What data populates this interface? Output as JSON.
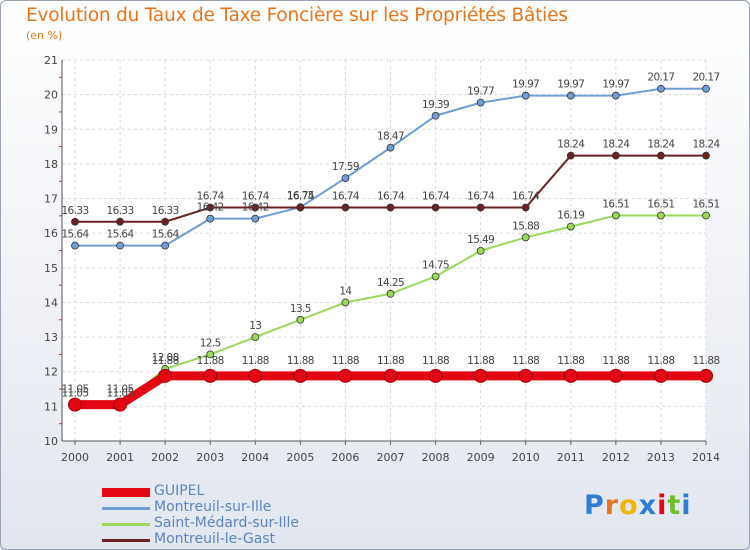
{
  "chart_data": {
    "type": "line",
    "title": "Evolution du Taux de Taxe Foncière sur les Propriétés Bâties",
    "ylabel": "(en %)",
    "xlabel": "",
    "ylim": [
      10,
      21
    ],
    "yticks": [
      "10",
      "11",
      "12",
      "13",
      "14",
      "15",
      "16",
      "17",
      "18",
      "19",
      "20",
      "21"
    ],
    "categories": [
      "2000",
      "2001",
      "2002",
      "2003",
      "2004",
      "2005",
      "2006",
      "2007",
      "2008",
      "2009",
      "2010",
      "2011",
      "2012",
      "2013",
      "2014"
    ],
    "series": [
      {
        "name": "GUIPEL",
        "color": "#e30613",
        "values": [
          11.05,
          11.05,
          11.88,
          11.88,
          11.88,
          11.88,
          11.88,
          11.88,
          11.88,
          11.88,
          11.88,
          11.88,
          11.88,
          11.88,
          11.88
        ],
        "labels": [
          "11.05",
          "11.05",
          "11.88",
          "11.88",
          "11.88",
          "11.88",
          "11.88",
          "11.88",
          "11.88",
          "11.88",
          "11.88",
          "11.88",
          "11.88",
          "11.88",
          "11.88"
        ]
      },
      {
        "name": "Montreuil-sur-Ille",
        "color": "#6f9ed4",
        "values": [
          15.64,
          15.64,
          15.64,
          16.42,
          16.42,
          16.75,
          17.59,
          18.47,
          19.39,
          19.77,
          19.97,
          19.97,
          19.97,
          20.17,
          20.17
        ],
        "labels": [
          "15.64",
          "15.64",
          "15.64",
          "16.42",
          "16.42",
          "16.75",
          "17.59",
          "18.47",
          "19.39",
          "19.77",
          "19.97",
          "19.97",
          "19.97",
          "20.17",
          "20.17"
        ]
      },
      {
        "name": "Saint-Médard-sur-Ille",
        "color": "#9ad95a",
        "values": [
          11.05,
          11.05,
          12.08,
          12.5,
          13,
          13.5,
          14,
          14.25,
          14.75,
          15.49,
          15.88,
          16.19,
          16.51,
          16.51,
          16.51
        ],
        "labels": [
          "11.05",
          "11.05",
          "12.08",
          "12.5",
          "13",
          "13.5",
          "14",
          "14.25",
          "14.75",
          "15.49",
          "15.88",
          "16.19",
          "16.51",
          "16.51",
          "16.51"
        ]
      },
      {
        "name": "Montreuil-le-Gast",
        "color": "#6b2222",
        "values": [
          16.33,
          16.33,
          16.33,
          16.74,
          16.74,
          16.74,
          16.74,
          16.74,
          16.74,
          16.74,
          16.74,
          18.24,
          18.24,
          18.24,
          18.24
        ],
        "labels": [
          "16.33",
          "16.33",
          "16.33",
          "16.74",
          "16.74",
          "16.74",
          "16.74",
          "16.74",
          "16.74",
          "16.74",
          "16.74",
          "18.24",
          "18.24",
          "18.24",
          "18.24"
        ]
      }
    ],
    "legend_position": "bottom-left"
  },
  "legend": [
    {
      "label": "GUIPEL",
      "color": "#e30613",
      "thick": true
    },
    {
      "label": "Montreuil-sur-Ille",
      "color": "#6f9ed4",
      "thick": false
    },
    {
      "label": "Saint-Médard-sur-Ille",
      "color": "#9ad95a",
      "thick": false
    },
    {
      "label": "Montreuil-le-Gast",
      "color": "#6b2222",
      "thick": false
    }
  ],
  "logo": {
    "letters": [
      "P",
      "r",
      "o",
      "x",
      "i",
      "t",
      "i"
    ],
    "colors": [
      "#2e7fd1",
      "#e8751a",
      "#f0b400",
      "#2e7fd1",
      "#e30613",
      "#6fbf2a",
      "#2e7fd1"
    ]
  }
}
